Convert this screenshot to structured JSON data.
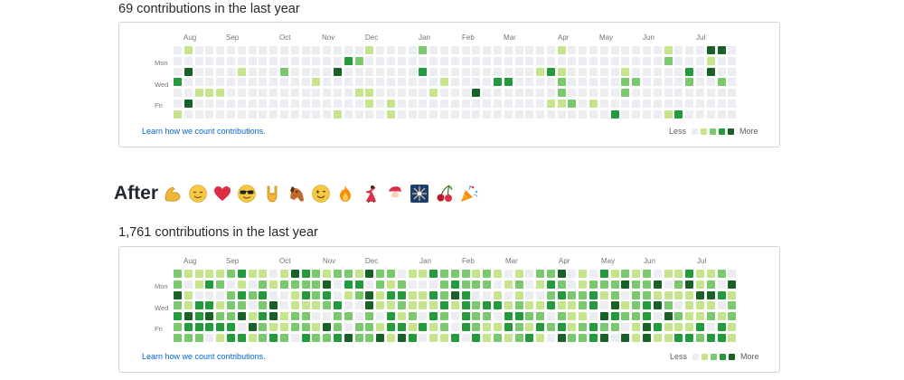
{
  "before": {
    "title": "69 contributions in the last year",
    "months": [
      "Aug",
      "Sep",
      "Oct",
      "Nov",
      "Dec",
      "Jan",
      "Feb",
      "Mar",
      "Apr",
      "May",
      "Jun",
      "Jul"
    ],
    "days": [
      "Mon",
      "Wed",
      "Fri"
    ],
    "learn_link": "Learn how we count contributions.",
    "legend_less": "Less",
    "legend_more": "More"
  },
  "after": {
    "heading": "After",
    "emojis": [
      "flexed-biceps",
      "relieved-face",
      "red-heart",
      "smiling-face-with-sunglasses",
      "sign-of-the-horns",
      "horse-face",
      "winking-face",
      "fire",
      "woman-dancing",
      "santa-claus",
      "sparkler",
      "cherries",
      "party-popper"
    ],
    "title": "1,761 contributions in the last year",
    "months": [
      "Aug",
      "Sep",
      "Oct",
      "Nov",
      "Dec",
      "Jan",
      "Feb",
      "Mar",
      "Apr",
      "May",
      "Jun",
      "Jul"
    ],
    "days": [
      "Mon",
      "Wed",
      "Fri"
    ],
    "learn_link": "Learn how we count contributions.",
    "legend_less": "Less",
    "legend_more": "More"
  },
  "colors": {
    "level0": "#ebedf0",
    "level1": "#c6e48b",
    "level2": "#7bc96f",
    "level3": "#239a3b",
    "level4": "#196127",
    "link": "#0366d6"
  }
}
